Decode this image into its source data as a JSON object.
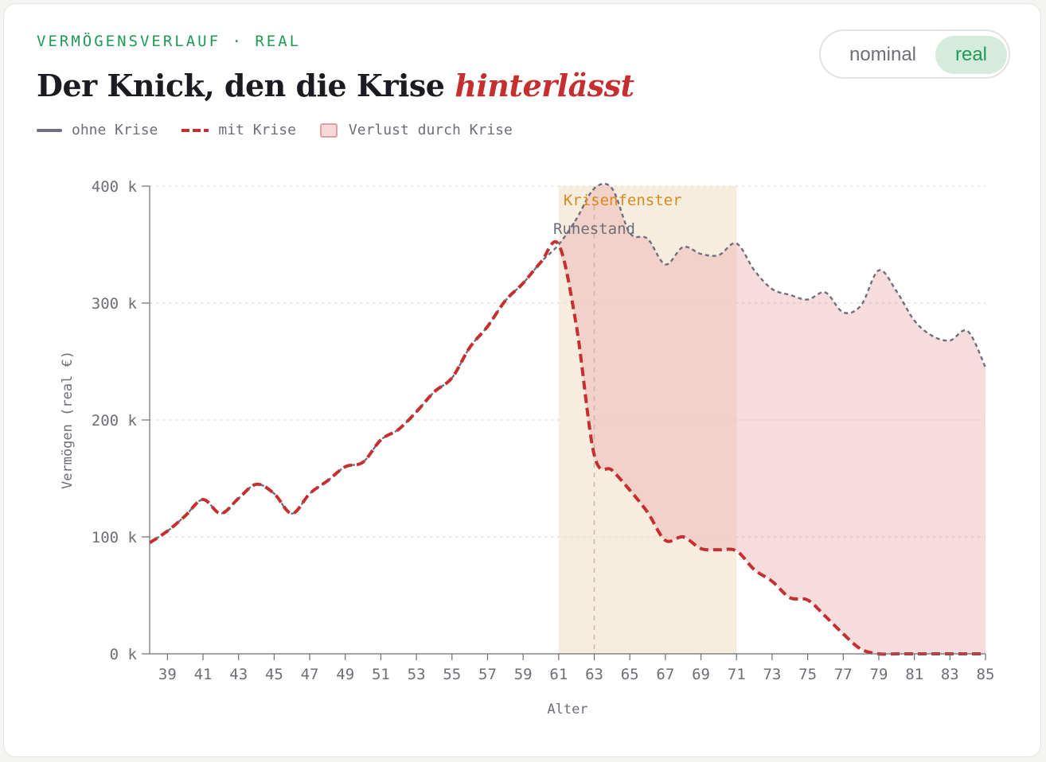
{
  "header": {
    "eyebrow": "VERMÖGENSVERLAUF · REAL",
    "title_main": "Der Knick, den die Krise ",
    "title_accent": "hinterlässt"
  },
  "legend": {
    "baseline": "ohne Krise",
    "crisis": "mit Krise",
    "loss": "Verlust durch Krise"
  },
  "toggle": {
    "options": [
      "nominal",
      "real"
    ],
    "selected": "real"
  },
  "colors": {
    "baseline": "#6e6e80",
    "crisis": "#c62f2f",
    "loss_fill": "#e8a3a3",
    "crisis_window_fill": "#f0dfc4",
    "accent_green": "#1f9a55",
    "annotation_orange": "#d98a1c"
  },
  "chart_data": {
    "type": "line",
    "xlabel": "Alter",
    "ylabel": "Vermögen (real €)",
    "ylim": [
      0,
      400000
    ],
    "xlim": [
      38,
      85
    ],
    "y_ticks": [
      0,
      100000,
      200000,
      300000,
      400000
    ],
    "y_tick_labels": [
      "0 k",
      "100 k",
      "200 k",
      "300 k",
      "400 k"
    ],
    "x_ticks": [
      39,
      41,
      43,
      45,
      47,
      49,
      51,
      53,
      55,
      57,
      59,
      61,
      63,
      65,
      67,
      69,
      71,
      73,
      75,
      77,
      79,
      81,
      83,
      85
    ],
    "grid": true,
    "x": [
      38,
      39,
      40,
      41,
      42,
      43,
      44,
      45,
      46,
      47,
      48,
      49,
      50,
      51,
      52,
      53,
      54,
      55,
      56,
      57,
      58,
      59,
      60,
      61,
      62,
      63,
      64,
      65,
      66,
      67,
      68,
      69,
      70,
      71,
      72,
      73,
      74,
      75,
      76,
      77,
      78,
      79,
      80,
      81,
      82,
      83,
      84,
      85
    ],
    "series": [
      {
        "name": "ohne Krise",
        "style": "solid",
        "values": [
          95000,
          105000,
          118000,
          132000,
          120000,
          133000,
          145000,
          137000,
          120000,
          137000,
          148000,
          160000,
          164000,
          183000,
          192000,
          207000,
          224000,
          236000,
          262000,
          280000,
          302000,
          317000,
          335000,
          350000,
          372000,
          398000,
          398000,
          360000,
          355000,
          333000,
          348000,
          342000,
          341000,
          351000,
          328000,
          312000,
          307000,
          303000,
          309000,
          292000,
          298000,
          328000,
          310000,
          285000,
          272000,
          268000,
          276000,
          245000
        ]
      },
      {
        "name": "mit Krise",
        "style": "dashed",
        "values": [
          95000,
          105000,
          118000,
          132000,
          120000,
          133000,
          145000,
          137000,
          120000,
          137000,
          148000,
          160000,
          164000,
          183000,
          192000,
          207000,
          224000,
          236000,
          262000,
          280000,
          302000,
          317000,
          335000,
          350000,
          280000,
          170000,
          157000,
          140000,
          121000,
          97000,
          100000,
          90000,
          89000,
          88000,
          72000,
          62000,
          48000,
          46000,
          32000,
          17000,
          4000,
          0,
          0,
          0,
          0,
          0,
          0,
          0
        ]
      }
    ],
    "loss_area": {
      "label": "Verlust durch Krise",
      "from": 61,
      "to": 85
    },
    "crisis_window": {
      "label": "Krisenfenster",
      "from": 61,
      "to": 71
    },
    "annotations": [
      {
        "label": "Ruhestand",
        "x": 63
      }
    ]
  }
}
